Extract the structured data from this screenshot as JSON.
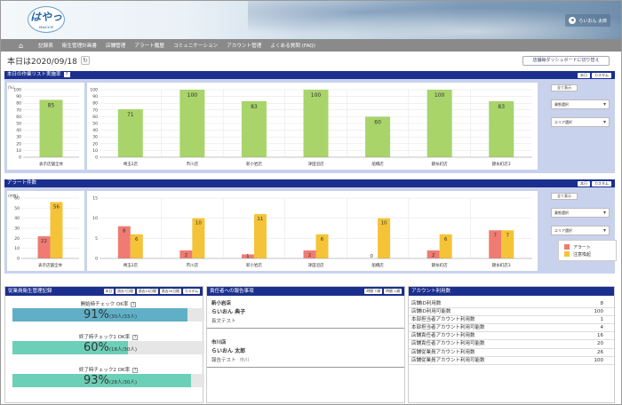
{
  "header": {
    "logo_text": "はやっ",
    "logo_sub": "HACCP",
    "user_name": "らいおん 太郎"
  },
  "nav": {
    "items": [
      "記録表",
      "衛生管理計画書",
      "店舗管理",
      "アラート履歴",
      "コミュニケーション",
      "アカウント管理",
      "よくある質問 (FAQ)"
    ]
  },
  "date_label": "本日は2020/09/18",
  "switch_button": "店舗毎ダッシュボードに切り替え",
  "task_section": {
    "title": "本日の作業リスト実施率",
    "help": "?",
    "buttons": [
      "本日",
      "カスタム"
    ],
    "unit": "(%)",
    "side": {
      "show_all": "全て表示",
      "select1": "業態選択",
      "select2": "エリア選択"
    }
  },
  "alert_section": {
    "title": "アラート件数",
    "buttons": [
      "本日",
      "カスタム"
    ],
    "unit": "(件数)",
    "side": {
      "show_all": "全て表示",
      "select1": "業態選択",
      "select2": "エリア選択"
    },
    "legend": [
      {
        "label": "アラート",
        "color": "#ef7b73"
      },
      {
        "label": "注意喚起",
        "color": "#f5c337"
      }
    ]
  },
  "chart_data": [
    {
      "type": "bar",
      "title": "本日の作業リスト実施率",
      "ylabel": "(%)",
      "ylim": [
        0,
        100
      ],
      "yticks": [
        0,
        10,
        20,
        30,
        40,
        50,
        60,
        70,
        80,
        90,
        100
      ],
      "categories": [
        "表示店舗全体"
      ],
      "values": [
        85
      ],
      "color": "#a8d46a"
    },
    {
      "type": "bar",
      "title": "本日の作業リスト実施率",
      "ylim": [
        0,
        100
      ],
      "yticks": [
        0,
        10,
        20,
        30,
        40,
        50,
        60,
        70,
        80,
        90,
        100
      ],
      "categories": [
        "埼玉2店",
        "市川店",
        "新小岩店",
        "津田沼店",
        "船橋店",
        "錦糸町店",
        "錦糸町店3"
      ],
      "values": [
        71,
        100,
        83,
        100,
        60,
        100,
        83
      ],
      "color": "#a8d46a"
    },
    {
      "type": "bar",
      "title": "アラート件数",
      "ylabel": "(件数)",
      "ylim": [
        0,
        60
      ],
      "yticks": [
        0,
        10,
        20,
        30,
        40,
        50,
        60
      ],
      "categories": [
        "表示店舗全体"
      ],
      "series": [
        {
          "name": "アラート",
          "values": [
            22
          ],
          "color": "#ef7b73"
        },
        {
          "name": "注意喚起",
          "values": [
            56
          ],
          "color": "#f5c337"
        }
      ]
    },
    {
      "type": "bar",
      "title": "アラート件数",
      "ylim": [
        0,
        15
      ],
      "yticks": [
        0,
        5,
        10,
        15
      ],
      "categories": [
        "埼玉2店",
        "市川店",
        "新小岩店",
        "津田沼店",
        "船橋店",
        "錦糸町店",
        "錦糸町店3"
      ],
      "series": [
        {
          "name": "アラート",
          "values": [
            8,
            2,
            1,
            2,
            0,
            2,
            7
          ],
          "color": "#ef7b73"
        },
        {
          "name": "注意喚起",
          "values": [
            6,
            10,
            11,
            6,
            10,
            6,
            7
          ],
          "color": "#f5c337"
        }
      ]
    }
  ],
  "hygiene": {
    "title": "従業員衛生管理記録",
    "buttons": [
      "本日",
      "過去7日間",
      "過去14日間",
      "過去30日間",
      "カスタム"
    ],
    "items": [
      {
        "label": "開始時チェック OK率",
        "help": "?",
        "percent": "91%",
        "detail": "(30人/33人)",
        "fill": 0.91,
        "color": "#5fb0c6"
      },
      {
        "label": "終了時チェック1 OK率",
        "help": "?",
        "percent": "60%",
        "detail": "(18人/30人)",
        "fill": 0.6,
        "color": "#6ccfb8"
      },
      {
        "label": "終了時チェック2 OK率",
        "help": "?",
        "percent": "93%",
        "detail": "(28人/30人)",
        "fill": 0.93,
        "color": "#6ccfb8"
      }
    ]
  },
  "reports": {
    "title": "責任者への報告事項",
    "buttons": [
      "時間 ↑順",
      "時間 ↓順"
    ],
    "entries": [
      {
        "store": "新小岩店",
        "name": "らいおん 典子",
        "note": "長文テスト",
        "extra": ""
      },
      {
        "store": "市川店",
        "name": "らいおん 太郎",
        "note": "報告テスト",
        "extra": "市川"
      }
    ]
  },
  "accounts": {
    "title": "アカウント利用数",
    "rows": [
      {
        "label": "店舗ID利用数",
        "value": "8"
      },
      {
        "label": "店舗ID利用可能数",
        "value": "100"
      },
      {
        "label": "本部担当者アカウント利用数",
        "value": "1"
      },
      {
        "label": "本部担当者アカウント利用可能数",
        "value": "4"
      },
      {
        "label": "店舗責任者アカウント利用数",
        "value": "16"
      },
      {
        "label": "店舗責任者アカウント利用可能数",
        "value": "20"
      },
      {
        "label": "店舗従業員アカウント利用数",
        "value": "26"
      },
      {
        "label": "店舗従業員アカウント利用可能数",
        "value": "100"
      }
    ]
  }
}
